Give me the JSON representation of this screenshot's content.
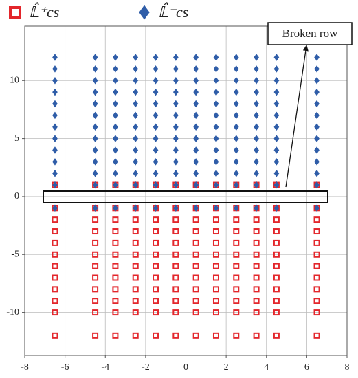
{
  "chart_data": {
    "type": "scatter",
    "annotation": "Broken row",
    "xlim": [
      -8,
      8
    ],
    "xticks": [
      -8,
      -6,
      -4,
      -2,
      0,
      2,
      4,
      6,
      8
    ],
    "ylim": [
      -13.7,
      14.7
    ],
    "yticks": [
      -10,
      -5,
      0,
      5,
      10
    ],
    "grid": true,
    "legend": "top",
    "series": [
      {
        "name": "𝕃̂⁺cs",
        "color": "#e3262b",
        "marker": "square",
        "x": [
          -6.5,
          -6.5,
          -6.5,
          -6.5,
          -6.5,
          -6.5,
          -6.5,
          -6.5,
          -6.5,
          -6.5,
          -6.5,
          -6.5,
          -4.5,
          -4.5,
          -4.5,
          -4.5,
          -4.5,
          -4.5,
          -4.5,
          -4.5,
          -4.5,
          -4.5,
          -4.5,
          -4.5,
          -3.5,
          -3.5,
          -3.5,
          -3.5,
          -3.5,
          -3.5,
          -3.5,
          -3.5,
          -3.5,
          -3.5,
          -3.5,
          -3.5,
          -2.5,
          -2.5,
          -2.5,
          -2.5,
          -2.5,
          -2.5,
          -2.5,
          -2.5,
          -2.5,
          -2.5,
          -2.5,
          -2.5,
          -1.5,
          -1.5,
          -1.5,
          -1.5,
          -1.5,
          -1.5,
          -1.5,
          -1.5,
          -1.5,
          -1.5,
          -1.5,
          -1.5,
          -0.5,
          -0.5,
          -0.5,
          -0.5,
          -0.5,
          -0.5,
          -0.5,
          -0.5,
          -0.5,
          -0.5,
          -0.5,
          -0.5,
          0.5,
          0.5,
          0.5,
          0.5,
          0.5,
          0.5,
          0.5,
          0.5,
          0.5,
          0.5,
          0.5,
          0.5,
          1.5,
          1.5,
          1.5,
          1.5,
          1.5,
          1.5,
          1.5,
          1.5,
          1.5,
          1.5,
          1.5,
          1.5,
          2.5,
          2.5,
          2.5,
          2.5,
          2.5,
          2.5,
          2.5,
          2.5,
          2.5,
          2.5,
          2.5,
          2.5,
          3.5,
          3.5,
          3.5,
          3.5,
          3.5,
          3.5,
          3.5,
          3.5,
          3.5,
          3.5,
          3.5,
          3.5,
          4.5,
          4.5,
          4.5,
          4.5,
          4.5,
          4.5,
          4.5,
          4.5,
          4.5,
          4.5,
          4.5,
          4.5,
          6.5,
          6.5,
          6.5,
          6.5,
          6.5,
          6.5,
          6.5,
          6.5,
          6.5,
          6.5,
          6.5,
          6.5
        ],
        "y": [
          -12,
          -10,
          -9,
          -8,
          -7,
          -6,
          -5,
          -4,
          -3,
          -2,
          -1,
          1,
          -12,
          -10,
          -9,
          -8,
          -7,
          -6,
          -5,
          -4,
          -3,
          -2,
          -1,
          1,
          -12,
          -10,
          -9,
          -8,
          -7,
          -6,
          -5,
          -4,
          -3,
          -2,
          -1,
          1,
          -12,
          -10,
          -9,
          -8,
          -7,
          -6,
          -5,
          -4,
          -3,
          -2,
          -1,
          1,
          -12,
          -10,
          -9,
          -8,
          -7,
          -6,
          -5,
          -4,
          -3,
          -2,
          -1,
          1,
          -12,
          -10,
          -9,
          -8,
          -7,
          -6,
          -5,
          -4,
          -3,
          -2,
          -1,
          1,
          -12,
          -10,
          -9,
          -8,
          -7,
          -6,
          -5,
          -4,
          -3,
          -2,
          -1,
          1,
          -12,
          -10,
          -9,
          -8,
          -7,
          -6,
          -5,
          -4,
          -3,
          -2,
          -1,
          1,
          -12,
          -10,
          -9,
          -8,
          -7,
          -6,
          -5,
          -4,
          -3,
          -2,
          -1,
          1,
          -12,
          -10,
          -9,
          -8,
          -7,
          -6,
          -5,
          -4,
          -3,
          -2,
          -1,
          1,
          -12,
          -10,
          -9,
          -8,
          -7,
          -6,
          -5,
          -4,
          -3,
          -2,
          -1,
          1,
          -12,
          -10,
          -9,
          -8,
          -7,
          -6,
          -5,
          -4,
          -3,
          -2,
          -1,
          1
        ]
      },
      {
        "name": "𝕃̂⁻cs",
        "color": "#2f5da8",
        "marker": "diamond",
        "x": [
          -6.5,
          -6.5,
          -6.5,
          -6.5,
          -6.5,
          -6.5,
          -6.5,
          -6.5,
          -6.5,
          -6.5,
          -6.5,
          -6.5,
          -6.5,
          -4.5,
          -4.5,
          -4.5,
          -4.5,
          -4.5,
          -4.5,
          -4.5,
          -4.5,
          -4.5,
          -4.5,
          -4.5,
          -4.5,
          -4.5,
          -3.5,
          -3.5,
          -3.5,
          -3.5,
          -3.5,
          -3.5,
          -3.5,
          -3.5,
          -3.5,
          -3.5,
          -3.5,
          -3.5,
          -3.5,
          -2.5,
          -2.5,
          -2.5,
          -2.5,
          -2.5,
          -2.5,
          -2.5,
          -2.5,
          -2.5,
          -2.5,
          -2.5,
          -2.5,
          -2.5,
          -1.5,
          -1.5,
          -1.5,
          -1.5,
          -1.5,
          -1.5,
          -1.5,
          -1.5,
          -1.5,
          -1.5,
          -1.5,
          -1.5,
          -1.5,
          -0.5,
          -0.5,
          -0.5,
          -0.5,
          -0.5,
          -0.5,
          -0.5,
          -0.5,
          -0.5,
          -0.5,
          -0.5,
          -0.5,
          -0.5,
          0.5,
          0.5,
          0.5,
          0.5,
          0.5,
          0.5,
          0.5,
          0.5,
          0.5,
          0.5,
          0.5,
          0.5,
          0.5,
          1.5,
          1.5,
          1.5,
          1.5,
          1.5,
          1.5,
          1.5,
          1.5,
          1.5,
          1.5,
          1.5,
          1.5,
          1.5,
          2.5,
          2.5,
          2.5,
          2.5,
          2.5,
          2.5,
          2.5,
          2.5,
          2.5,
          2.5,
          2.5,
          2.5,
          2.5,
          3.5,
          3.5,
          3.5,
          3.5,
          3.5,
          3.5,
          3.5,
          3.5,
          3.5,
          3.5,
          3.5,
          3.5,
          3.5,
          4.5,
          4.5,
          4.5,
          4.5,
          4.5,
          4.5,
          4.5,
          4.5,
          4.5,
          4.5,
          4.5,
          4.5,
          4.5,
          6.5,
          6.5,
          6.5,
          6.5,
          6.5,
          6.5,
          6.5,
          6.5,
          6.5,
          6.5,
          6.5,
          6.5,
          6.5
        ],
        "y": [
          -1,
          1,
          2,
          3,
          4,
          5,
          6,
          7,
          8,
          9,
          10,
          11,
          12,
          -1,
          1,
          2,
          3,
          4,
          5,
          6,
          7,
          8,
          9,
          10,
          11,
          12,
          -1,
          1,
          2,
          3,
          4,
          5,
          6,
          7,
          8,
          9,
          10,
          11,
          12,
          -1,
          1,
          2,
          3,
          4,
          5,
          6,
          7,
          8,
          9,
          10,
          11,
          12,
          -1,
          1,
          2,
          3,
          4,
          5,
          6,
          7,
          8,
          9,
          10,
          11,
          12,
          -1,
          1,
          2,
          3,
          4,
          5,
          6,
          7,
          8,
          9,
          10,
          11,
          12,
          -1,
          1,
          2,
          3,
          4,
          5,
          6,
          7,
          8,
          9,
          10,
          11,
          12,
          -1,
          1,
          2,
          3,
          4,
          5,
          6,
          7,
          8,
          9,
          10,
          11,
          12,
          -1,
          1,
          2,
          3,
          4,
          5,
          6,
          7,
          8,
          9,
          10,
          11,
          12,
          -1,
          1,
          2,
          3,
          4,
          5,
          6,
          7,
          8,
          9,
          10,
          11,
          12,
          -1,
          1,
          2,
          3,
          4,
          5,
          6,
          7,
          8,
          9,
          10,
          11,
          12,
          -1,
          1,
          2,
          3,
          4,
          5,
          6,
          7,
          8,
          9,
          10,
          11,
          12
        ]
      }
    ]
  }
}
